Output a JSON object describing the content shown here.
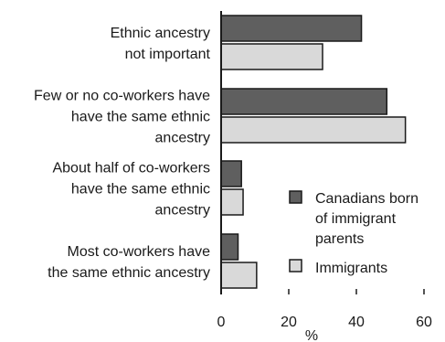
{
  "chart_data": {
    "type": "bar",
    "orientation": "horizontal",
    "categories": [
      [
        "Ethnic ancestry",
        "not important"
      ],
      [
        "Few or no co-workers have",
        "have the same ethnic",
        "ancestry"
      ],
      [
        "About half of co-workers",
        "have the same ethnic",
        "ancestry"
      ],
      [
        "Most co-workers have",
        "the same ethnic ancestry"
      ]
    ],
    "series": [
      {
        "name": [
          "Canadians born",
          "of immigrant",
          "parents"
        ],
        "color": "#5f5f5f",
        "values": [
          41.5,
          49,
          6,
          5
        ]
      },
      {
        "name": [
          "Immigrants"
        ],
        "color": "#d9d9d9",
        "values": [
          30,
          54.5,
          6.5,
          10.5
        ]
      }
    ],
    "xlabel": "%",
    "xlim": [
      0,
      60
    ],
    "xticks": [
      0,
      20,
      40,
      60
    ],
    "grid": false,
    "legend_position": "right"
  }
}
